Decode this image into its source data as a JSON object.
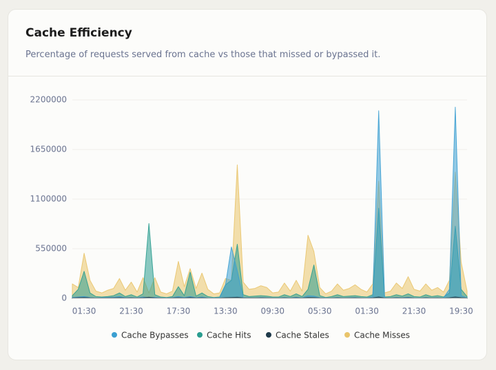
{
  "chart_data": {
    "type": "area",
    "title": "Cache Efficiency",
    "subtitle": "Percentage of requests served from cache vs those that missed or bypassed it.",
    "categories": [
      null,
      null,
      "01:30",
      null,
      null,
      null,
      null,
      null,
      null,
      null,
      "21:30",
      null,
      null,
      null,
      null,
      null,
      null,
      null,
      "17:30",
      null,
      null,
      null,
      null,
      null,
      null,
      null,
      "13:30",
      null,
      null,
      null,
      null,
      null,
      null,
      null,
      "09:30",
      null,
      null,
      null,
      null,
      null,
      null,
      null,
      "05:30",
      null,
      null,
      null,
      null,
      null,
      null,
      null,
      "01:30",
      null,
      null,
      null,
      null,
      null,
      null,
      null,
      "21:30",
      null,
      null,
      null,
      null,
      null,
      null,
      null,
      "19:30",
      null
    ],
    "ylim": [
      0,
      2200000
    ],
    "yticks": [
      0,
      550000,
      1100000,
      1650000,
      2200000
    ],
    "grid": true,
    "series": [
      {
        "name": "Cache Bypasses",
        "color": "#3b9fd1",
        "values": [
          10000,
          15000,
          20000,
          10000,
          5000,
          8000,
          10000,
          12000,
          20000,
          8000,
          10000,
          6000,
          15000,
          8000,
          12000,
          6000,
          5000,
          8000,
          20000,
          10000,
          20000,
          8000,
          15000,
          6000,
          5000,
          8000,
          150000,
          570000,
          300000,
          10000,
          8000,
          6000,
          10000,
          8000,
          5000,
          6000,
          10000,
          6000,
          12000,
          6000,
          30000,
          25000,
          8000,
          5000,
          6000,
          10000,
          6000,
          8000,
          10000,
          6000,
          5000,
          20000,
          2080000,
          8000,
          6000,
          10000,
          8000,
          12000,
          6000,
          5000,
          10000,
          6000,
          8000,
          5000,
          100000,
          2120000,
          30000,
          6000
        ]
      },
      {
        "name": "Cache Hits",
        "color": "#2a9d8f",
        "values": [
          30000,
          100000,
          300000,
          60000,
          20000,
          15000,
          20000,
          30000,
          60000,
          20000,
          40000,
          15000,
          50000,
          830000,
          40000,
          15000,
          10000,
          20000,
          130000,
          30000,
          290000,
          25000,
          60000,
          20000,
          10000,
          15000,
          150000,
          200000,
          600000,
          40000,
          20000,
          25000,
          30000,
          25000,
          15000,
          15000,
          40000,
          20000,
          50000,
          20000,
          100000,
          370000,
          30000,
          10000,
          20000,
          40000,
          20000,
          25000,
          30000,
          20000,
          15000,
          40000,
          1000000,
          15000,
          20000,
          40000,
          25000,
          50000,
          20000,
          15000,
          40000,
          20000,
          30000,
          15000,
          60000,
          800000,
          100000,
          20000
        ]
      },
      {
        "name": "Cache Stales",
        "color": "#1f3a4a",
        "values": [
          5000,
          8000,
          10000,
          6000,
          4000,
          4000,
          5000,
          6000,
          8000,
          5000,
          6000,
          4000,
          7000,
          12000,
          6000,
          4000,
          3000,
          5000,
          8000,
          5000,
          10000,
          5000,
          7000,
          4000,
          3000,
          4000,
          8000,
          10000,
          12000,
          6000,
          5000,
          5000,
          6000,
          5000,
          4000,
          4000,
          6000,
          4000,
          7000,
          4000,
          10000,
          9000,
          5000,
          3000,
          4000,
          6000,
          4000,
          5000,
          6000,
          4000,
          3000,
          6000,
          15000,
          4000,
          4000,
          6000,
          5000,
          7000,
          4000,
          3000,
          6000,
          4000,
          5000,
          3000,
          7000,
          15000,
          8000,
          4000
        ]
      },
      {
        "name": "Cache Misses",
        "color": "#e9c46a",
        "values": [
          160000,
          120000,
          500000,
          200000,
          80000,
          60000,
          90000,
          110000,
          220000,
          90000,
          180000,
          70000,
          230000,
          60000,
          230000,
          70000,
          50000,
          80000,
          410000,
          130000,
          330000,
          110000,
          280000,
          100000,
          50000,
          60000,
          220000,
          200000,
          1480000,
          180000,
          100000,
          110000,
          140000,
          120000,
          60000,
          70000,
          170000,
          80000,
          200000,
          80000,
          700000,
          520000,
          120000,
          50000,
          80000,
          160000,
          90000,
          110000,
          150000,
          100000,
          70000,
          160000,
          1300000,
          60000,
          80000,
          170000,
          110000,
          240000,
          100000,
          80000,
          160000,
          90000,
          120000,
          70000,
          200000,
          1400000,
          400000,
          80000
        ]
      }
    ]
  }
}
